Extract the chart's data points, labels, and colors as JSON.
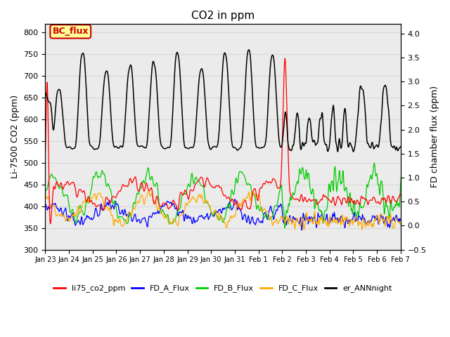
{
  "title": "CO2 in ppm",
  "ylabel_left": "Li-7500 CO2 (ppm)",
  "ylabel_right": "FD chamber flux (ppm)",
  "ylim_left": [
    300,
    820
  ],
  "ylim_right": [
    -0.5,
    4.2
  ],
  "yticks_left": [
    300,
    350,
    400,
    450,
    500,
    550,
    600,
    650,
    700,
    750,
    800
  ],
  "yticks_right": [
    -0.5,
    0.0,
    0.5,
    1.0,
    1.5,
    2.0,
    2.5,
    3.0,
    3.5,
    4.0
  ],
  "xtick_labels": [
    "Jan 23",
    "Jan 24",
    "Jan 25",
    "Jan 26",
    "Jan 27",
    "Jan 28",
    "Jan 29",
    "Jan 30",
    "Jan 31",
    "Feb 1",
    "Feb 2",
    "Feb 3",
    "Feb 4",
    "Feb 5",
    "Feb 6",
    "Feb 7"
  ],
  "grid_color": "#d8d8d8",
  "bg_color": "#ebebeb",
  "annotation_text": "BC_flux",
  "annotation_color": "#cc0000",
  "annotation_bg": "#ffff99",
  "colors": {
    "li75_co2_ppm": "#ff0000",
    "FD_A_Flux": "#0000ff",
    "FD_B_Flux": "#00cc00",
    "FD_C_Flux": "#ffaa00",
    "er_ANNnight": "#000000"
  },
  "figsize": [
    6.4,
    4.8
  ],
  "dpi": 100
}
